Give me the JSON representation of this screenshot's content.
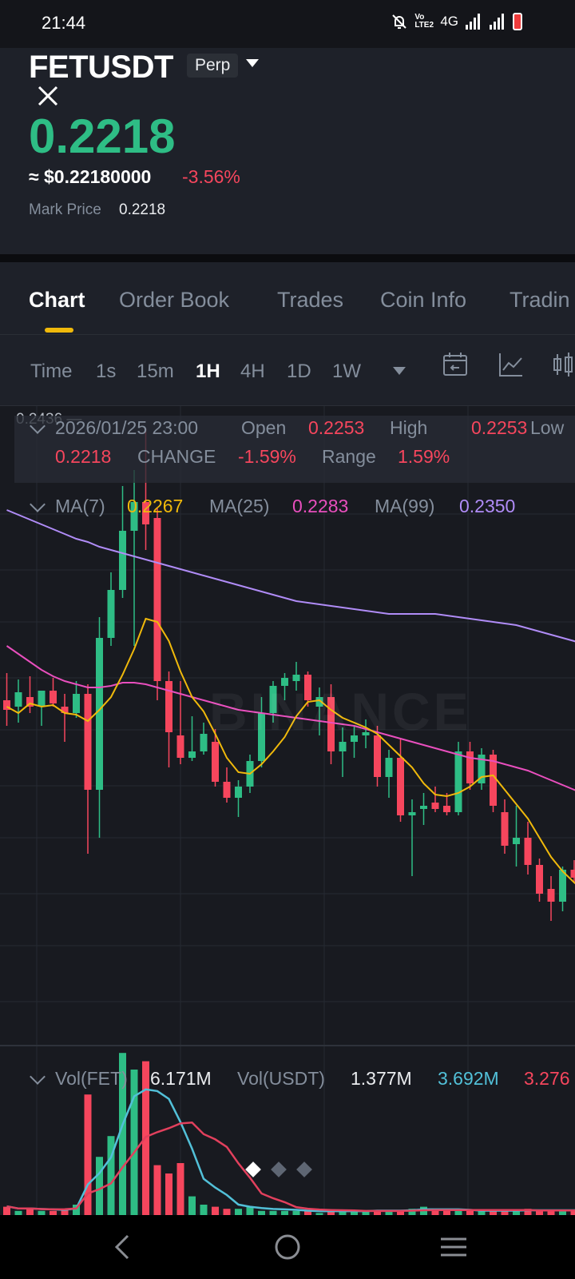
{
  "status_bar": {
    "time": "21:44",
    "icons": [
      "bell-off-icon",
      "volte-icon",
      "4g-icon",
      "signal-icon",
      "signal-icon",
      "battery-icon"
    ],
    "network": "4G",
    "volte": "Vo LTE2"
  },
  "header": {
    "symbol": "FETUSDT",
    "badge": "Perp",
    "last_price": "0.2218",
    "approx_usd": "≈ $0.22180000",
    "change_pct": "-3.56%",
    "mark_label": "Mark Price",
    "mark_value": "0.2218"
  },
  "tabs": [
    {
      "label": "Chart",
      "active": true
    },
    {
      "label": "Order Book"
    },
    {
      "label": "Trades"
    },
    {
      "label": "Coin Info"
    },
    {
      "label": "Tradin"
    }
  ],
  "intervals": {
    "items": [
      "Time",
      "1s",
      "15m",
      "1H",
      "4H",
      "1D",
      "1W"
    ],
    "active": "1H"
  },
  "chart": {
    "y_top_label": "0.2436 —",
    "ohlc": {
      "datetime": "2026/01/25 23:00",
      "open_label": "Open",
      "open": "0.2253",
      "high_label": "High",
      "high": "0.2253",
      "low_label": "Low",
      "close": "0.2218",
      "change_label": "CHANGE",
      "change": "-1.59%",
      "range_label": "Range",
      "range": "1.59%"
    },
    "ma": {
      "ma7_label": "MA(7)",
      "ma7": "0.2267",
      "ma25_label": "MA(25)",
      "ma25": "0.2283",
      "ma99_label": "MA(99)",
      "ma99": "0.2350"
    },
    "volume": {
      "vol_fet_label": "Vol(FET)",
      "vol_fet": "6.171M",
      "vol_usdt_label": "Vol(USDT)",
      "vol_usdt": "1.377M",
      "vol_ma1": "3.692M",
      "vol_ma2": "3.276"
    },
    "watermark": "BINANCE",
    "colors": {
      "up": "#2ebd85",
      "down": "#f6465d",
      "ma7": "#f0b90b",
      "ma25": "#e94fbe",
      "ma99": "#b08cf7",
      "vol_ma1": "#52c0d8",
      "vol_ma2": "#e2405d"
    }
  },
  "chart_data": {
    "type": "candlestick",
    "interval": "1H",
    "candles": [
      {
        "o": 0.2266,
        "h": 0.2283,
        "l": 0.225,
        "c": 0.226
      },
      {
        "o": 0.2262,
        "h": 0.2279,
        "l": 0.2252,
        "c": 0.2271
      },
      {
        "o": 0.2268,
        "h": 0.2281,
        "l": 0.2258,
        "c": 0.2262
      },
      {
        "o": 0.2262,
        "h": 0.2272,
        "l": 0.225,
        "c": 0.2272
      },
      {
        "o": 0.2272,
        "h": 0.228,
        "l": 0.2262,
        "c": 0.2264
      },
      {
        "o": 0.2262,
        "h": 0.227,
        "l": 0.224,
        "c": 0.2258
      },
      {
        "o": 0.2258,
        "h": 0.2278,
        "l": 0.2255,
        "c": 0.227
      },
      {
        "o": 0.227,
        "h": 0.2276,
        "l": 0.217,
        "c": 0.221
      },
      {
        "o": 0.221,
        "h": 0.2318,
        "l": 0.218,
        "c": 0.2305
      },
      {
        "o": 0.2305,
        "h": 0.2346,
        "l": 0.23,
        "c": 0.2335
      },
      {
        "o": 0.2335,
        "h": 0.24,
        "l": 0.233,
        "c": 0.2372
      },
      {
        "o": 0.2372,
        "h": 0.241,
        "l": 0.23,
        "c": 0.239
      },
      {
        "o": 0.239,
        "h": 0.2436,
        "l": 0.236,
        "c": 0.2376
      },
      {
        "o": 0.238,
        "h": 0.2386,
        "l": 0.2266,
        "c": 0.2278
      },
      {
        "o": 0.2278,
        "h": 0.2284,
        "l": 0.2224,
        "c": 0.2246
      },
      {
        "o": 0.2244,
        "h": 0.2278,
        "l": 0.2226,
        "c": 0.223
      },
      {
        "o": 0.223,
        "h": 0.2256,
        "l": 0.2228,
        "c": 0.2234
      },
      {
        "o": 0.2234,
        "h": 0.2252,
        "l": 0.2232,
        "c": 0.2245
      },
      {
        "o": 0.224,
        "h": 0.2248,
        "l": 0.2212,
        "c": 0.2215
      },
      {
        "o": 0.2215,
        "h": 0.2224,
        "l": 0.2202,
        "c": 0.2205
      },
      {
        "o": 0.2205,
        "h": 0.2216,
        "l": 0.2193,
        "c": 0.2212
      },
      {
        "o": 0.2212,
        "h": 0.2232,
        "l": 0.2208,
        "c": 0.2228
      },
      {
        "o": 0.2228,
        "h": 0.2268,
        "l": 0.2224,
        "c": 0.2258
      },
      {
        "o": 0.2258,
        "h": 0.2278,
        "l": 0.2252,
        "c": 0.2275
      },
      {
        "o": 0.2275,
        "h": 0.2283,
        "l": 0.2266,
        "c": 0.228
      },
      {
        "o": 0.2278,
        "h": 0.229,
        "l": 0.2272,
        "c": 0.2282
      },
      {
        "o": 0.2282,
        "h": 0.2284,
        "l": 0.2262,
        "c": 0.2266
      },
      {
        "o": 0.2262,
        "h": 0.2274,
        "l": 0.2244,
        "c": 0.2268
      },
      {
        "o": 0.2268,
        "h": 0.2276,
        "l": 0.2226,
        "c": 0.2234
      },
      {
        "o": 0.2234,
        "h": 0.2249,
        "l": 0.2218,
        "c": 0.224
      },
      {
        "o": 0.224,
        "h": 0.225,
        "l": 0.223,
        "c": 0.2244
      },
      {
        "o": 0.2244,
        "h": 0.2254,
        "l": 0.2236,
        "c": 0.2246
      },
      {
        "o": 0.2244,
        "h": 0.225,
        "l": 0.2212,
        "c": 0.2218
      },
      {
        "o": 0.2218,
        "h": 0.2235,
        "l": 0.2205,
        "c": 0.223
      },
      {
        "o": 0.223,
        "h": 0.2242,
        "l": 0.219,
        "c": 0.2194
      },
      {
        "o": 0.2194,
        "h": 0.2204,
        "l": 0.2156,
        "c": 0.2196
      },
      {
        "o": 0.2198,
        "h": 0.2208,
        "l": 0.2188,
        "c": 0.22
      },
      {
        "o": 0.2202,
        "h": 0.2212,
        "l": 0.2196,
        "c": 0.2198
      },
      {
        "o": 0.22,
        "h": 0.2208,
        "l": 0.2194,
        "c": 0.2196
      },
      {
        "o": 0.2196,
        "h": 0.224,
        "l": 0.2194,
        "c": 0.2234
      },
      {
        "o": 0.2234,
        "h": 0.224,
        "l": 0.221,
        "c": 0.2214
      },
      {
        "o": 0.2214,
        "h": 0.2236,
        "l": 0.221,
        "c": 0.2232
      },
      {
        "o": 0.2232,
        "h": 0.2235,
        "l": 0.2196,
        "c": 0.22
      },
      {
        "o": 0.2196,
        "h": 0.2204,
        "l": 0.217,
        "c": 0.2175
      },
      {
        "o": 0.2176,
        "h": 0.22,
        "l": 0.2162,
        "c": 0.218
      },
      {
        "o": 0.218,
        "h": 0.219,
        "l": 0.2157,
        "c": 0.2163
      },
      {
        "o": 0.2163,
        "h": 0.2167,
        "l": 0.214,
        "c": 0.2145
      },
      {
        "o": 0.2148,
        "h": 0.2156,
        "l": 0.2128,
        "c": 0.214
      },
      {
        "o": 0.214,
        "h": 0.2162,
        "l": 0.2134,
        "c": 0.216
      },
      {
        "o": 0.216,
        "h": 0.2166,
        "l": 0.2152,
        "c": 0.2155
      },
      {
        "o": 0.2155,
        "h": 0.216,
        "l": 0.2138,
        "c": 0.2146
      },
      {
        "o": 0.2146,
        "h": 0.215,
        "l": 0.2115,
        "c": 0.212
      },
      {
        "o": 0.2122,
        "h": 0.2156,
        "l": 0.212,
        "c": 0.2152
      }
    ],
    "ma7": [
      0.2262,
      0.2258,
      0.2264,
      0.2262,
      0.2263,
      0.2258,
      0.2257,
      0.2253,
      0.226,
      0.2268,
      0.2282,
      0.2298,
      0.2317,
      0.2315,
      0.2303,
      0.2284,
      0.2268,
      0.2259,
      0.2245,
      0.223,
      0.2221,
      0.222,
      0.2226,
      0.2234,
      0.2243,
      0.2256,
      0.2265,
      0.2266,
      0.226,
      0.2255,
      0.2252,
      0.2249,
      0.2245,
      0.2238,
      0.2231,
      0.2224,
      0.2214,
      0.2207,
      0.2206,
      0.2208,
      0.2212,
      0.2218,
      0.2219,
      0.221,
      0.2201,
      0.2192,
      0.218,
      0.2168,
      0.2159,
      0.2152,
      0.2146,
      0.214,
      0.2138
    ],
    "ma25": [
      0.23,
      0.2295,
      0.229,
      0.2285,
      0.2281,
      0.2278,
      0.2276,
      0.2274,
      0.2274,
      0.2275,
      0.2277,
      0.2277,
      0.2276,
      0.2274,
      0.2272,
      0.227,
      0.2268,
      0.2266,
      0.2264,
      0.2262,
      0.226,
      0.2259,
      0.2258,
      0.2257,
      0.2256,
      0.2255,
      0.2254,
      0.2253,
      0.2252,
      0.2251,
      0.225,
      0.2248,
      0.2246,
      0.2244,
      0.2242,
      0.224,
      0.2238,
      0.2236,
      0.2234,
      0.2232,
      0.223,
      0.2229,
      0.2228,
      0.2226,
      0.2224,
      0.2222,
      0.2219,
      0.2216,
      0.2213,
      0.221,
      0.2207,
      0.2203,
      0.2199
    ],
    "ma99": [
      0.2385,
      0.2382,
      0.2379,
      0.2376,
      0.2373,
      0.237,
      0.2367,
      0.2365,
      0.2362,
      0.236,
      0.2358,
      0.2356,
      0.2354,
      0.2352,
      0.235,
      0.2348,
      0.2346,
      0.2344,
      0.2342,
      0.234,
      0.2338,
      0.2336,
      0.2334,
      0.2332,
      0.233,
      0.2328,
      0.2327,
      0.2326,
      0.2325,
      0.2324,
      0.2323,
      0.2322,
      0.2321,
      0.232,
      0.232,
      0.232,
      0.232,
      0.232,
      0.2319,
      0.2318,
      0.2317,
      0.2316,
      0.2315,
      0.2314,
      0.2313,
      0.2311,
      0.2309,
      0.2307,
      0.2305,
      0.2303,
      0.23,
      0.2298,
      0.2296
    ],
    "volume_visible": [
      0.4,
      0.2,
      0.3,
      0.2,
      0.2,
      0.3,
      0.5,
      5.8,
      2.8,
      3.8,
      7.8,
      7.0,
      7.4,
      2.4,
      2.0,
      2.5,
      0.9,
      0.5,
      0.4,
      0.3,
      0.3,
      0.4,
      0.2,
      0.2,
      0.2,
      0.2,
      0.2,
      0.1,
      0.2,
      0.2,
      0.2,
      0.2,
      0.2,
      0.2,
      0.2,
      0.3,
      0.4,
      0.2,
      0.2,
      0.2,
      0.2,
      0.2,
      0.2,
      0.2,
      0.2,
      0.3,
      0.2,
      0.2,
      0.2,
      0.2,
      0.2,
      0.2,
      0.2
    ],
    "y_top": 0.2436
  },
  "page_dots": [
    true,
    false,
    false
  ],
  "nav": {
    "icons": [
      "back-icon",
      "home-icon",
      "menu-icon"
    ]
  }
}
